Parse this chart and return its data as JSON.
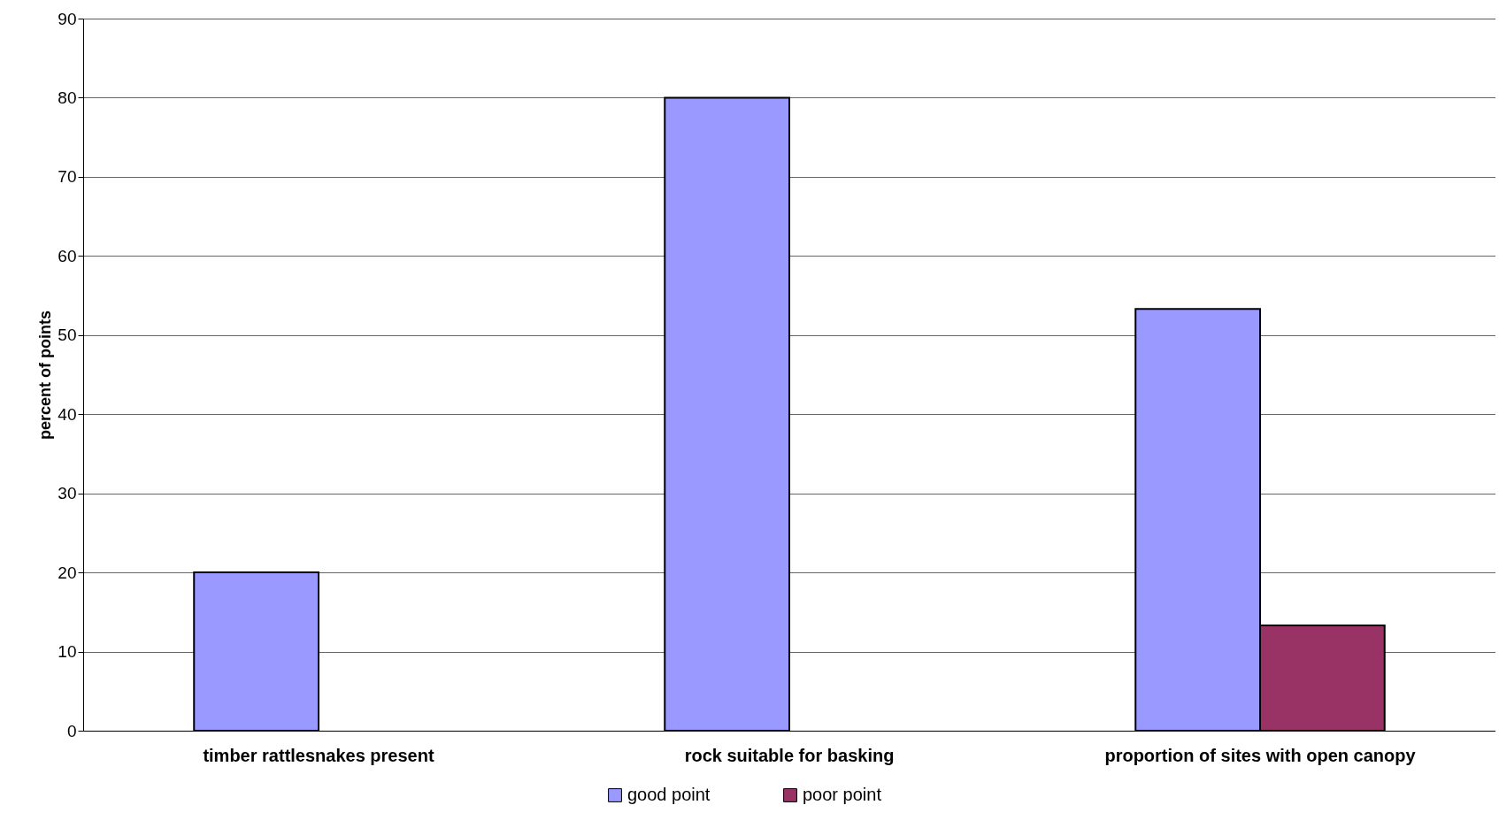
{
  "chart_data": {
    "type": "bar",
    "ylabel": "percent of points",
    "categories": [
      "timber rattlesnakes present",
      "rock suitable for basking",
      "proportion of sites with open canopy"
    ],
    "series": [
      {
        "name": "good point",
        "color": "#9999ff",
        "values": [
          20,
          80,
          53.3
        ]
      },
      {
        "name": "poor point",
        "color": "#993366",
        "values": [
          null,
          null,
          13.3
        ]
      }
    ],
    "ylim": [
      0,
      90
    ],
    "yticks": [
      0,
      10,
      20,
      30,
      40,
      50,
      60,
      70,
      80,
      90
    ],
    "grid": "y",
    "legend": "bottom"
  }
}
